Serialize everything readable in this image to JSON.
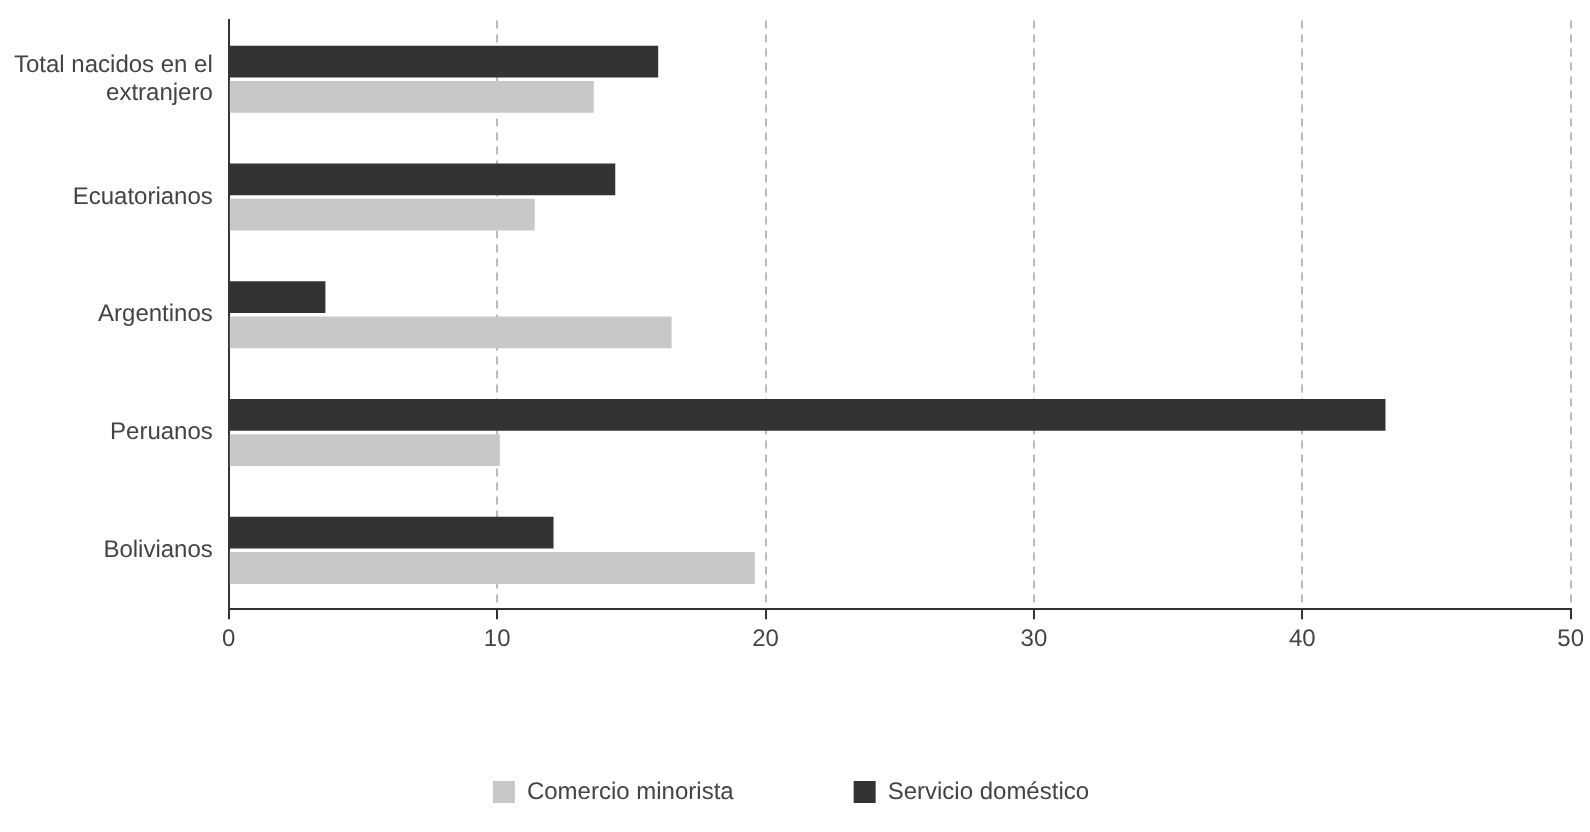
{
  "chart_data": {
    "type": "bar",
    "orientation": "horizontal",
    "categories": [
      "Total nacidos en el extranjero",
      "Ecuatorianos",
      "Argentinos",
      "Peruanos",
      "Bolivianos"
    ],
    "series": [
      {
        "name": "Comercio minorista",
        "color": "#c8c8c8",
        "values": [
          13.6,
          11.4,
          16.5,
          10.1,
          19.6
        ]
      },
      {
        "name": "Servicio doméstico",
        "color": "#333333",
        "values": [
          16.0,
          14.4,
          3.6,
          43.1,
          12.1
        ]
      }
    ],
    "xlim": [
      0,
      50
    ],
    "xticks": [
      0,
      10,
      20,
      30,
      40,
      50
    ],
    "grid": "x",
    "legend": "bottom"
  }
}
